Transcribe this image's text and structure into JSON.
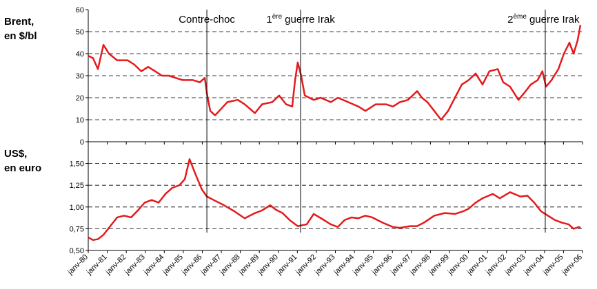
{
  "chart_data": [
    {
      "type": "line",
      "ylabel": [
        "Brent,",
        "en $/bl"
      ],
      "xlim": [
        1980,
        2006
      ],
      "ylim": [
        0,
        60
      ],
      "yticks": [
        0,
        10,
        20,
        30,
        40,
        50,
        60
      ],
      "grid": true,
      "annotations": [
        {
          "x": 1986.24,
          "text": "Contre-choc"
        },
        {
          "x": 1991.17,
          "text": "1",
          "superscript": "ère",
          "text_after": "guerre Irak"
        },
        {
          "x": 2004.04,
          "text": "2",
          "superscript": "ème",
          "text_after": "guerre Irak"
        }
      ],
      "x": [
        1980.0,
        1980.25,
        1980.51,
        1980.8,
        1981.09,
        1981.52,
        1982.07,
        1982.43,
        1982.79,
        1983.15,
        1983.52,
        1983.88,
        1984.24,
        1984.6,
        1984.97,
        1985.51,
        1985.87,
        1986.13,
        1986.24,
        1986.42,
        1986.67,
        1986.89,
        1987.32,
        1987.87,
        1988.23,
        1988.77,
        1989.14,
        1989.68,
        1990.04,
        1990.41,
        1990.73,
        1990.88,
        1991.02,
        1991.2,
        1991.39,
        1991.86,
        1992.22,
        1992.76,
        1993.13,
        1993.67,
        1994.21,
        1994.58,
        1995.12,
        1995.66,
        1996.03,
        1996.39,
        1996.82,
        1997.3,
        1997.55,
        1997.84,
        1998.2,
        1998.56,
        1998.93,
        1999.29,
        1999.65,
        2000.01,
        2000.38,
        2000.74,
        2001.1,
        2001.54,
        2001.83,
        2002.19,
        2002.63,
        2002.92,
        2003.28,
        2003.64,
        2003.89,
        2004.08,
        2004.37,
        2004.73,
        2005.02,
        2005.31,
        2005.53,
        2005.74,
        2005.89
      ],
      "series": [
        {
          "color": "#e41a1c",
          "values": [
            39,
            38,
            33,
            44,
            40,
            37,
            37,
            35,
            32,
            34,
            32,
            30,
            30,
            29,
            28,
            28,
            27,
            29,
            22,
            14,
            12,
            14,
            18,
            19,
            17,
            13,
            17,
            18,
            21,
            17,
            16,
            28,
            36,
            30,
            21,
            19,
            20,
            18,
            20,
            18,
            16,
            14,
            17,
            17,
            16,
            18,
            19,
            23,
            20,
            18,
            14,
            10,
            14,
            20,
            26,
            28,
            31,
            26,
            32,
            33,
            27,
            25,
            19,
            22,
            26,
            28,
            32,
            25,
            28,
            33,
            40,
            45,
            40,
            46,
            53
          ]
        }
      ]
    },
    {
      "type": "line",
      "ylabel": [
        "US$,",
        "en euro"
      ],
      "xlim": [
        1980,
        2006
      ],
      "xticks": [
        {
          "value": 1980,
          "label": "janv-80"
        },
        {
          "value": 1981,
          "label": "janv-81"
        },
        {
          "value": 1982,
          "label": "janv-82"
        },
        {
          "value": 1983,
          "label": "janv-83"
        },
        {
          "value": 1984,
          "label": "janv-84"
        },
        {
          "value": 1985,
          "label": "janv-85"
        },
        {
          "value": 1986,
          "label": "janv-86"
        },
        {
          "value": 1987,
          "label": "janv-87"
        },
        {
          "value": 1988,
          "label": "janv-88"
        },
        {
          "value": 1989,
          "label": "janv-89"
        },
        {
          "value": 1990,
          "label": "janv-90"
        },
        {
          "value": 1991,
          "label": "janv-91"
        },
        {
          "value": 1992,
          "label": "janv-92"
        },
        {
          "value": 1993,
          "label": "janv-93"
        },
        {
          "value": 1994,
          "label": "janv-94"
        },
        {
          "value": 1995,
          "label": "janv-95"
        },
        {
          "value": 1996,
          "label": "janv-96"
        },
        {
          "value": 1997,
          "label": "janv-97"
        },
        {
          "value": 1998,
          "label": "janv-98"
        },
        {
          "value": 1999,
          "label": "janv-99"
        },
        {
          "value": 2000,
          "label": "janv-00"
        },
        {
          "value": 2001,
          "label": "janv-01"
        },
        {
          "value": 2002,
          "label": "janv-02"
        },
        {
          "value": 2003,
          "label": "janv-03"
        },
        {
          "value": 2004,
          "label": "janv-04"
        },
        {
          "value": 2005,
          "label": "janv-05"
        },
        {
          "value": 2006,
          "label": "janv-06"
        }
      ],
      "ylim": [
        0.5,
        1.75
      ],
      "yticks": [
        {
          "value": 0.5,
          "label": "0,50"
        },
        {
          "value": 0.75,
          "label": "0,75"
        },
        {
          "value": 1,
          "label": "1,00"
        },
        {
          "value": 1.25,
          "label": "1,25"
        },
        {
          "value": 1.5,
          "label": "1,50"
        }
      ],
      "grid": true,
      "x": [
        1980.0,
        1980.25,
        1980.51,
        1980.8,
        1981.16,
        1981.52,
        1981.89,
        1982.25,
        1982.61,
        1982.97,
        1983.34,
        1983.7,
        1984.06,
        1984.42,
        1984.79,
        1985.08,
        1985.33,
        1985.69,
        1985.98,
        1986.24,
        1986.6,
        1987.14,
        1987.69,
        1988.23,
        1988.77,
        1989.14,
        1989.57,
        1989.86,
        1990.22,
        1990.59,
        1991.02,
        1991.49,
        1991.86,
        1992.4,
        1992.76,
        1993.13,
        1993.49,
        1993.85,
        1994.21,
        1994.58,
        1994.94,
        1995.48,
        1996.03,
        1996.39,
        1996.93,
        1997.3,
        1997.66,
        1998.2,
        1998.75,
        1999.29,
        1999.72,
        2000.01,
        2000.38,
        2000.74,
        2001.28,
        2001.65,
        2002.19,
        2002.73,
        2003.1,
        2003.46,
        2003.82,
        2004.18,
        2004.55,
        2004.91,
        2005.27,
        2005.53,
        2005.82,
        2005.89
      ],
      "series": [
        {
          "color": "#e41a1c",
          "values": [
            0.65,
            0.62,
            0.63,
            0.68,
            0.78,
            0.88,
            0.9,
            0.88,
            0.96,
            1.05,
            1.08,
            1.05,
            1.15,
            1.22,
            1.25,
            1.32,
            1.55,
            1.35,
            1.2,
            1.12,
            1.08,
            1.02,
            0.95,
            0.87,
            0.93,
            0.96,
            1.02,
            0.97,
            0.93,
            0.85,
            0.78,
            0.8,
            0.92,
            0.85,
            0.8,
            0.77,
            0.85,
            0.88,
            0.87,
            0.9,
            0.88,
            0.82,
            0.77,
            0.76,
            0.78,
            0.78,
            0.82,
            0.9,
            0.93,
            0.92,
            0.95,
            0.98,
            1.05,
            1.1,
            1.15,
            1.1,
            1.17,
            1.12,
            1.13,
            1.05,
            0.95,
            0.9,
            0.85,
            0.82,
            0.8,
            0.75,
            0.77,
            0.76
          ]
        }
      ]
    }
  ]
}
